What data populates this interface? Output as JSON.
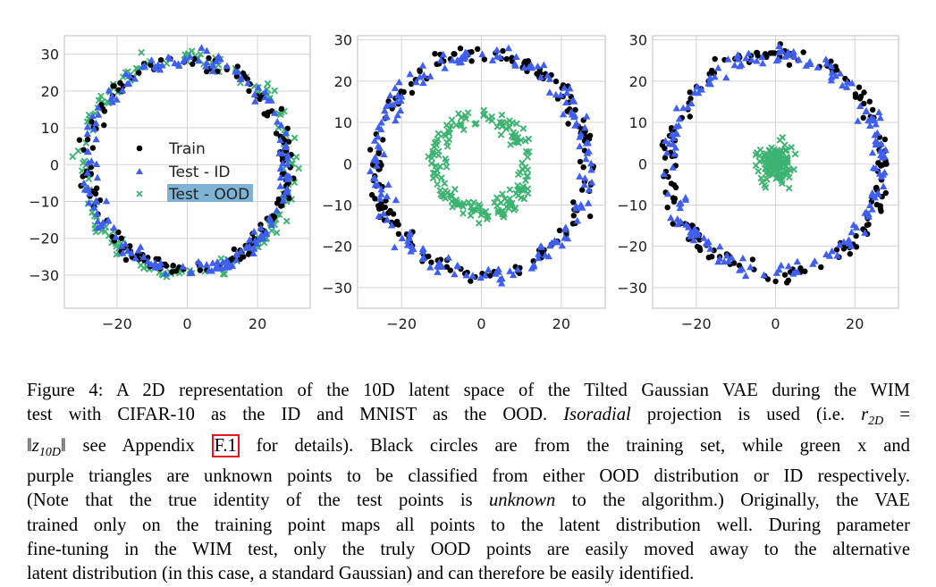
{
  "colors": {
    "train": "#000000",
    "test_id": "#3f5ff0",
    "test_ood": "#3cb371",
    "legend_highlight": "#7fb3d5",
    "ref_box": "#e8141c",
    "grid": "#d5d5d5",
    "frame": "#bfbfbf"
  },
  "chart_data": [
    {
      "type": "scatter",
      "title": "",
      "xlabel": "",
      "ylabel": "",
      "xlim": [
        -35,
        35
      ],
      "ylim": [
        -39,
        35
      ],
      "xticks": [
        -20,
        0,
        20
      ],
      "yticks": [
        -30,
        -20,
        -10,
        0,
        10,
        20,
        30
      ],
      "grid": true,
      "legend_position": "center",
      "legend": [
        "Train",
        "Test - ID",
        "Test - OOD"
      ],
      "series": [
        {
          "name": "Train",
          "marker": "circle",
          "shape": "ring",
          "radius": 28.5,
          "count": 160
        },
        {
          "name": "Test - ID",
          "marker": "triangle",
          "shape": "ring",
          "radius": 28.5,
          "count": 170
        },
        {
          "name": "Test - OOD",
          "marker": "x",
          "shape": "ring",
          "radius": 29.5,
          "count": 190
        }
      ]
    },
    {
      "type": "scatter",
      "title": "",
      "xlabel": "",
      "ylabel": "",
      "xlim": [
        -31,
        31
      ],
      "ylim": [
        -35,
        31
      ],
      "xticks": [
        -20,
        0,
        20
      ],
      "yticks": [
        -30,
        -20,
        -10,
        0,
        10,
        20,
        30
      ],
      "grid": true,
      "series": [
        {
          "name": "Train",
          "marker": "circle",
          "shape": "ring",
          "radius": 26.5,
          "count": 170
        },
        {
          "name": "Test - ID",
          "marker": "triangle",
          "shape": "ring",
          "radius": 26.5,
          "count": 180
        },
        {
          "name": "Test - OOD",
          "marker": "x",
          "shape": "ring",
          "radius": 11.5,
          "count": 170
        }
      ]
    },
    {
      "type": "scatter",
      "title": "",
      "xlabel": "",
      "ylabel": "",
      "xlim": [
        -31,
        31
      ],
      "ylim": [
        -35,
        31
      ],
      "xticks": [
        -20,
        0,
        20
      ],
      "yticks": [
        -30,
        -20,
        -10,
        0,
        10,
        20,
        30
      ],
      "grid": true,
      "series": [
        {
          "name": "Train",
          "marker": "circle",
          "shape": "ring",
          "radius": 27,
          "count": 170
        },
        {
          "name": "Test - ID",
          "marker": "triangle",
          "shape": "ring",
          "radius": 26.5,
          "count": 180
        },
        {
          "name": "Test - OOD",
          "marker": "x",
          "shape": "blob",
          "radius": 2.2,
          "count": 130
        }
      ]
    }
  ],
  "caption": {
    "l1": "Figure 4: A 2D representation of the 10D latent space of the Tilted Gaussian VAE during the WIM",
    "l2a": "test with CIFAR-10 as the ID and MNIST as the OOD.",
    "l2b": "Isoradial",
    "l2c": "projection is used (i.e.",
    "l2d": "r",
    "l2e": "2D",
    "l2f": "=",
    "l3a": "‖",
    "l3b": "z",
    "l3c": "10D",
    "l3d": "‖ see Appendix",
    "l3ref": "F.1",
    "l3e": "for details).  Black circles are from the training set, while green x and",
    "l4": "purple triangles are unknown points to be classified from either OOD distribution or ID respectively.",
    "l5a": "(Note that the true identity of the test points is",
    "l5b": "unknown",
    "l5c": "to the algorithm.)  Originally, the VAE",
    "l6": "trained only on the training point maps all points to the latent distribution well.  During parameter",
    "l7": "fine-tuning in the WIM test, only the truly OOD points are easily moved away to the alternative",
    "l8": "latent distribution (in this case, a standard Gaussian) and can therefore be easily identified."
  }
}
